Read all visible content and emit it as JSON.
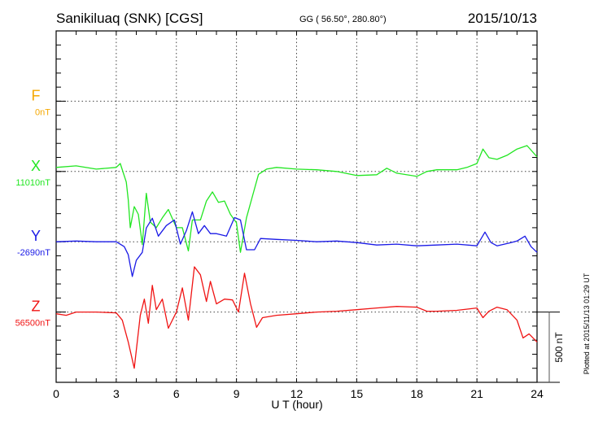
{
  "chart_data": {
    "type": "line",
    "title": "Sanikiluaq (SNK)  [CGS]",
    "subtitle": "GG ( 56.50°, 280.80°)",
    "date": "2015/10/13",
    "xlabel": "U T (hour)",
    "xlim": [
      0,
      24
    ],
    "x_ticks": [
      "0",
      "3",
      "6",
      "9",
      "12",
      "15",
      "18",
      "21",
      "24"
    ],
    "scale_label": "500 nT",
    "scale_nT": 500,
    "plotted_note": "Plotted at 2015/11/13 01:29 UT",
    "grid": true,
    "series": [
      {
        "name": "F",
        "baseline_label": "0nT",
        "color": "#f5a800",
        "offset_index": 0,
        "points": []
      },
      {
        "name": "X",
        "baseline_label": "11010nT",
        "color": "#22e622",
        "offset_index": 1,
        "points": [
          [
            0,
            29
          ],
          [
            1,
            40
          ],
          [
            2,
            17
          ],
          [
            3,
            29
          ],
          [
            3.2,
            57
          ],
          [
            3.5,
            -75
          ],
          [
            3.6,
            -200
          ],
          [
            3.7,
            -400
          ],
          [
            3.9,
            -250
          ],
          [
            4.1,
            -305
          ],
          [
            4.3,
            -520
          ],
          [
            4.5,
            -155
          ],
          [
            4.7,
            -360
          ],
          [
            5.0,
            -400
          ],
          [
            5.3,
            -330
          ],
          [
            5.6,
            -270
          ],
          [
            6.0,
            -400
          ],
          [
            6.3,
            -400
          ],
          [
            6.6,
            -565
          ],
          [
            6.8,
            -345
          ],
          [
            7.2,
            -345
          ],
          [
            7.5,
            -210
          ],
          [
            7.8,
            -145
          ],
          [
            8.1,
            -220
          ],
          [
            8.4,
            -210
          ],
          [
            8.7,
            -305
          ],
          [
            9.0,
            -365
          ],
          [
            9.2,
            -575
          ],
          [
            9.5,
            -330
          ],
          [
            9.8,
            -175
          ],
          [
            10.1,
            -20
          ],
          [
            10.5,
            17
          ],
          [
            11,
            29
          ],
          [
            12,
            17
          ],
          [
            13,
            12
          ],
          [
            14,
            0
          ],
          [
            15,
            -29
          ],
          [
            16,
            -23
          ],
          [
            16.5,
            23
          ],
          [
            17,
            -12
          ],
          [
            18,
            -35
          ],
          [
            18.5,
            0
          ],
          [
            19,
            12
          ],
          [
            20,
            12
          ],
          [
            20.5,
            29
          ],
          [
            21,
            57
          ],
          [
            21.3,
            160
          ],
          [
            21.6,
            98
          ],
          [
            22,
            86
          ],
          [
            22.5,
            115
          ],
          [
            23,
            160
          ],
          [
            23.5,
            184
          ],
          [
            24,
            104
          ]
        ]
      },
      {
        "name": "Y",
        "baseline_label": "-2690nT",
        "color": "#1a1ae6",
        "offset_index": 2,
        "points": [
          [
            0,
            0
          ],
          [
            1,
            5
          ],
          [
            2,
            0
          ],
          [
            3,
            0
          ],
          [
            3.4,
            -35
          ],
          [
            3.6,
            -92
          ],
          [
            3.8,
            -247
          ],
          [
            4.0,
            -132
          ],
          [
            4.3,
            -75
          ],
          [
            4.5,
            98
          ],
          [
            4.8,
            167
          ],
          [
            5.1,
            40
          ],
          [
            5.5,
            115
          ],
          [
            5.9,
            155
          ],
          [
            6.2,
            -17
          ],
          [
            6.5,
            80
          ],
          [
            6.8,
            213
          ],
          [
            7.1,
            58
          ],
          [
            7.4,
            115
          ],
          [
            7.7,
            58
          ],
          [
            8.0,
            58
          ],
          [
            8.5,
            40
          ],
          [
            8.9,
            172
          ],
          [
            9.2,
            155
          ],
          [
            9.5,
            -57
          ],
          [
            9.9,
            -57
          ],
          [
            10.2,
            23
          ],
          [
            11,
            17
          ],
          [
            12,
            10
          ],
          [
            13,
            0
          ],
          [
            14,
            5
          ],
          [
            15,
            -6
          ],
          [
            16,
            -23
          ],
          [
            17,
            -17
          ],
          [
            18,
            -29
          ],
          [
            19,
            -23
          ],
          [
            20,
            -17
          ],
          [
            21,
            -29
          ],
          [
            21.4,
            69
          ],
          [
            21.7,
            -6
          ],
          [
            22,
            -29
          ],
          [
            22.7,
            -6
          ],
          [
            23,
            5
          ],
          [
            23.4,
            40
          ],
          [
            23.7,
            -35
          ],
          [
            24,
            -75
          ]
        ]
      },
      {
        "name": "Z",
        "baseline_label": "56500nT",
        "color": "#f01414",
        "offset_index": 3,
        "points": [
          [
            0,
            -12
          ],
          [
            0.5,
            -23
          ],
          [
            1,
            0
          ],
          [
            2,
            0
          ],
          [
            3,
            -6
          ],
          [
            3.3,
            -58
          ],
          [
            3.6,
            -213
          ],
          [
            3.9,
            -400
          ],
          [
            4.2,
            -23
          ],
          [
            4.4,
            92
          ],
          [
            4.6,
            -80
          ],
          [
            4.8,
            190
          ],
          [
            5.0,
            17
          ],
          [
            5.3,
            92
          ],
          [
            5.6,
            -115
          ],
          [
            6.0,
            0
          ],
          [
            6.3,
            172
          ],
          [
            6.6,
            -58
          ],
          [
            6.9,
            322
          ],
          [
            7.2,
            265
          ],
          [
            7.5,
            75
          ],
          [
            7.7,
            218
          ],
          [
            8.0,
            58
          ],
          [
            8.4,
            92
          ],
          [
            8.8,
            86
          ],
          [
            9.1,
            0
          ],
          [
            9.4,
            276
          ],
          [
            9.7,
            58
          ],
          [
            10.0,
            -109
          ],
          [
            10.3,
            -40
          ],
          [
            11,
            -23
          ],
          [
            12,
            -12
          ],
          [
            13,
            0
          ],
          [
            14,
            6
          ],
          [
            15,
            17
          ],
          [
            16,
            29
          ],
          [
            17,
            40
          ],
          [
            18,
            35
          ],
          [
            18.5,
            6
          ],
          [
            19,
            6
          ],
          [
            20,
            12
          ],
          [
            21,
            29
          ],
          [
            21.3,
            -40
          ],
          [
            21.6,
            6
          ],
          [
            22,
            35
          ],
          [
            22.5,
            17
          ],
          [
            23,
            -58
          ],
          [
            23.3,
            -184
          ],
          [
            23.6,
            -155
          ],
          [
            24,
            -213
          ]
        ]
      }
    ]
  }
}
